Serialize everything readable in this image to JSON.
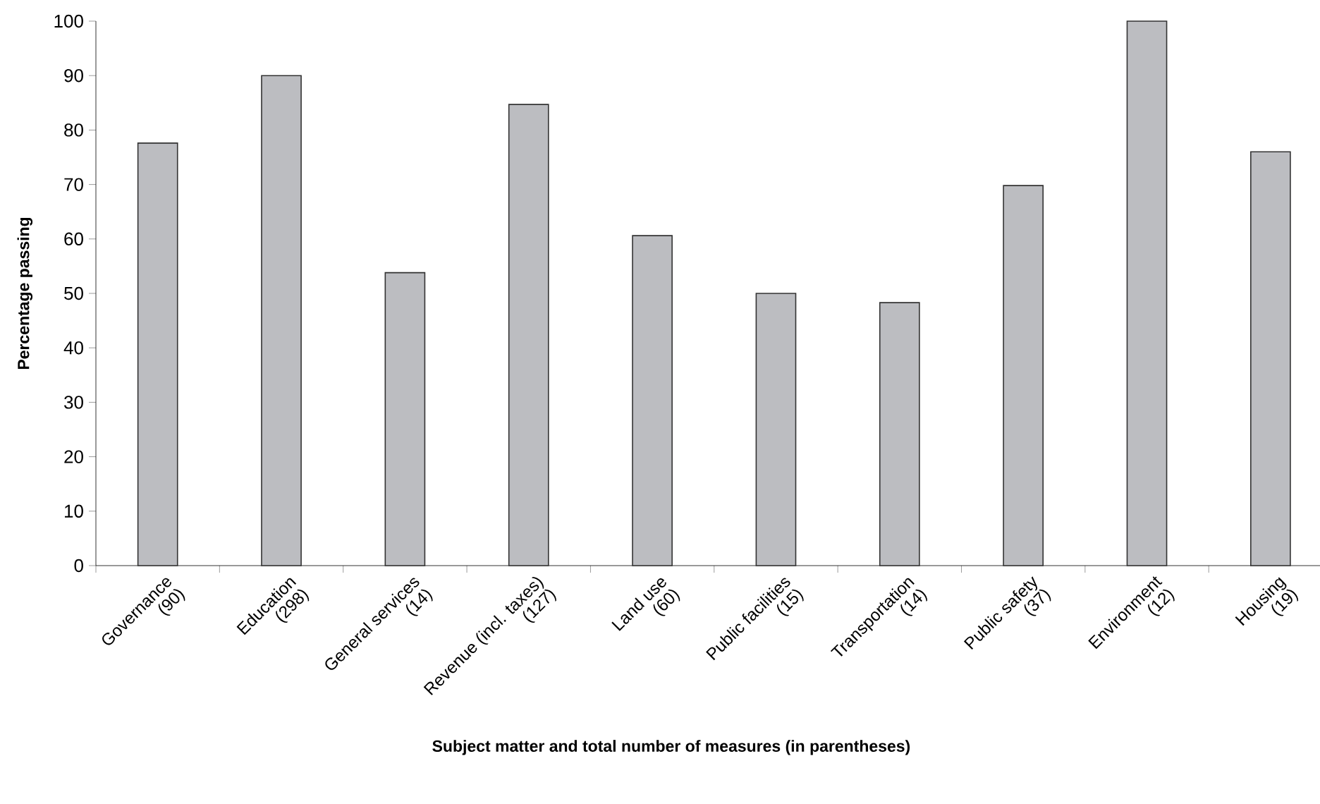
{
  "chart_data": {
    "type": "bar",
    "xlabel": "Subject matter and total number of measures (in parentheses)",
    "ylabel": "Percentage passing",
    "categories": [
      "Governance\n(90)",
      "Education\n(298)",
      "General services\n(14)",
      "Revenue (incl. taxes)\n(127)",
      "Land use\n(60)",
      "Public facilities\n(15)",
      "Transportation\n(14)",
      "Public safety\n(37)",
      "Environment\n(12)",
      "Housing\n(19)"
    ],
    "values": [
      77.6,
      90,
      53.8,
      84.7,
      60.6,
      50,
      48.3,
      69.8,
      100,
      76
    ],
    "color": "#bcbdc1",
    "ylim": [
      0,
      100
    ],
    "yticks": [
      0,
      10,
      20,
      30,
      40,
      50,
      60,
      70,
      80,
      90,
      100
    ]
  }
}
